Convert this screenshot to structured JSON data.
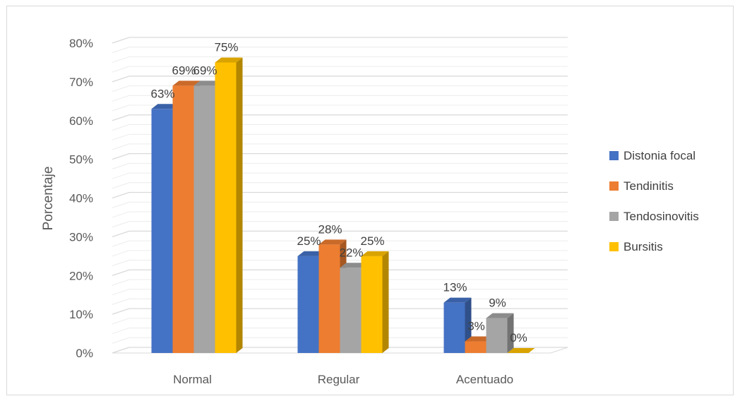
{
  "chart_data": {
    "type": "bar",
    "title": "",
    "xlabel": "",
    "ylabel": "Porcentaje",
    "ylim": [
      0,
      80
    ],
    "yticks": [
      "0%",
      "10%",
      "20%",
      "30%",
      "40%",
      "50%",
      "60%",
      "70%",
      "80%"
    ],
    "categories": [
      "Normal",
      "Regular",
      "Acentuado"
    ],
    "series": [
      {
        "name": "Distonia focal",
        "values": [
          63,
          25,
          13
        ],
        "labels": [
          "63%",
          "25%",
          "13%"
        ],
        "color": "#4472c4"
      },
      {
        "name": "Tendinitis",
        "values": [
          69,
          28,
          3
        ],
        "labels": [
          "69%",
          "28%",
          "3%"
        ],
        "color": "#ed7d31"
      },
      {
        "name": "Tendosinovitis",
        "values": [
          69,
          22,
          9
        ],
        "labels": [
          "69%",
          "22%",
          "9%"
        ],
        "color": "#a5a5a5"
      },
      {
        "name": "Bursitis",
        "values": [
          75,
          25,
          0
        ],
        "labels": [
          "75%",
          "25%",
          "0%"
        ],
        "color": "#ffc000"
      }
    ],
    "grid": true,
    "legend_position": "right",
    "style": "3d-column"
  }
}
